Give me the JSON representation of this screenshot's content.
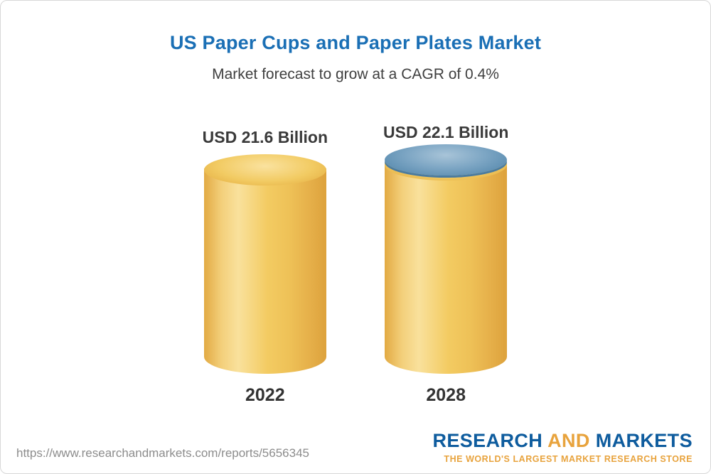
{
  "header": {
    "title": "US Paper Cups and Paper Plates Market",
    "subtitle": "Market forecast to grow at a CAGR of 0.4%"
  },
  "chart_data": {
    "type": "bar",
    "categories": [
      "2022",
      "2028"
    ],
    "values": [
      21.6,
      22.1
    ],
    "value_labels": [
      "USD 21.6 Billion",
      "USD 22.1 Billion"
    ],
    "unit": "USD Billion",
    "title": "US Paper Cups and Paper Plates Market",
    "subtitle": "Market forecast to grow at a CAGR of 0.4%",
    "cagr": "0.4%",
    "bar_style": "3d-cylinder",
    "bar_color": "#f2c75f",
    "cap_colors": [
      "#eec054",
      "#6d9cbe"
    ],
    "legend": "none",
    "grid": "off"
  },
  "footer": {
    "url": "https://www.researchandmarkets.com/reports/5656345",
    "logo": {
      "research": "RESEARCH",
      "and": "AND",
      "markets": "MARKETS",
      "tagline": "THE WORLD'S LARGEST MARKET RESEARCH STORE"
    }
  },
  "colors": {
    "title_blue": "#1a6fb5",
    "logo_blue": "#0e5c9e",
    "logo_gold": "#e8a33d",
    "cylinder_gold": "#f2c75f",
    "cylinder_top_blue": "#6d9cbe"
  }
}
